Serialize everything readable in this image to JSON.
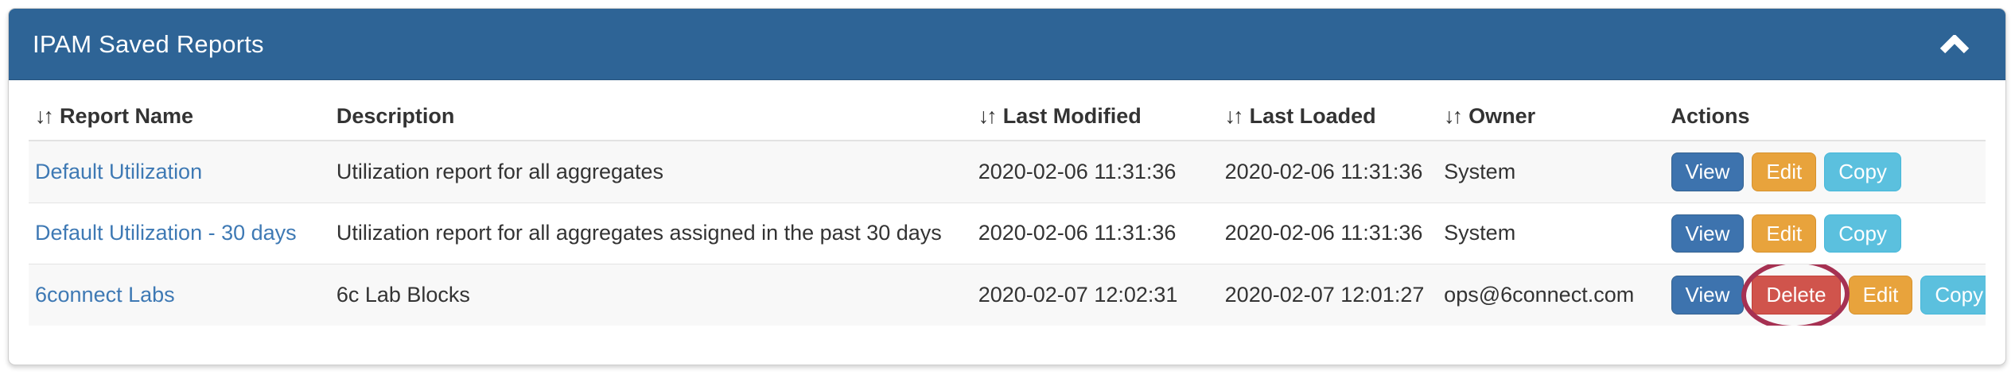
{
  "panel": {
    "title": "IPAM Saved Reports",
    "collapse_icon": "chevron-up"
  },
  "table": {
    "sort_glyph": "↓↑",
    "columns": [
      {
        "label": "Report Name",
        "sortable": true
      },
      {
        "label": "Description",
        "sortable": false
      },
      {
        "label": "Last Modified",
        "sortable": true
      },
      {
        "label": "Last Loaded",
        "sortable": true
      },
      {
        "label": "Owner",
        "sortable": true
      },
      {
        "label": "Actions",
        "sortable": false
      }
    ],
    "rows": [
      {
        "report_name": "Default Utilization",
        "description": "Utilization report for all aggregates",
        "last_modified": "2020-02-06 11:31:36",
        "last_loaded": "2020-02-06 11:31:36",
        "owner": "System",
        "actions": [
          "View",
          "Edit",
          "Copy"
        ],
        "circled_action": null
      },
      {
        "report_name": "Default Utilization - 30 days",
        "description": "Utilization report for all aggregates assigned in the past 30 days",
        "last_modified": "2020-02-06 11:31:36",
        "last_loaded": "2020-02-06 11:31:36",
        "owner": "System",
        "actions": [
          "View",
          "Edit",
          "Copy"
        ],
        "circled_action": null
      },
      {
        "report_name": "6connect Labs",
        "description": "6c Lab Blocks",
        "last_modified": "2020-02-07 12:02:31",
        "last_loaded": "2020-02-07 12:01:27",
        "owner": "ops@6connect.com",
        "actions": [
          "View",
          "Delete",
          "Edit",
          "Copy"
        ],
        "circled_action": "Delete"
      }
    ]
  },
  "colors": {
    "panel_header_bg": "#2e6496",
    "link": "#3e79b4",
    "view_button": "#3d73ae",
    "edit_button": "#e8a33c",
    "copy_button": "#5bc0de",
    "delete_button": "#d0544c",
    "annotation_circle": "#a63152",
    "row_stripe": "#f8f8f8"
  }
}
